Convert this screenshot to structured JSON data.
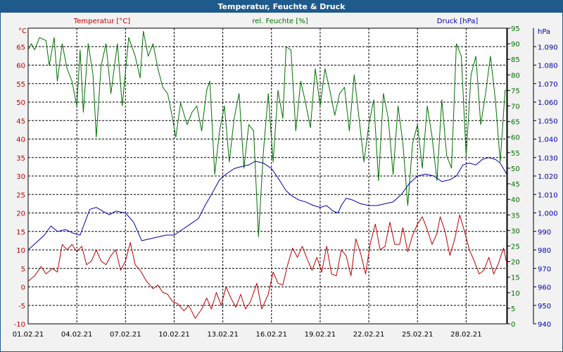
{
  "window": {
    "title": "Temperatur, Feuchte & Druck"
  },
  "chart_data": {
    "type": "line",
    "title": "Temperatur, Feuchte & Druck",
    "x_dates": [
      "01.02.21",
      "04.02.21",
      "07.02.21",
      "10.02.21",
      "13.02.21",
      "16.02.21",
      "19.02.21",
      "22.02.21",
      "25.02.21",
      "28.02.21"
    ],
    "x_range_days": [
      0,
      29.5
    ],
    "axes": {
      "left": {
        "unit": "°C",
        "label": "Temperatur [°C]",
        "range": [
          -10,
          70
        ],
        "ticks": [
          "-10",
          "-5",
          "0",
          "5",
          "10",
          "15",
          "20",
          "25",
          "30",
          "35",
          "40",
          "45",
          "50",
          "55",
          "60",
          "65"
        ],
        "color": "#c00000"
      },
      "mid": {
        "unit": "%",
        "label": "rel. Feuchte [%]",
        "range": [
          0,
          95
        ],
        "ticks": [
          "0",
          "5",
          "10",
          "15",
          "20",
          "25",
          "30",
          "35",
          "40",
          "45",
          "50",
          "55",
          "60",
          "65",
          "70",
          "75",
          "80",
          "85",
          "90",
          "95"
        ],
        "color": "#007000"
      },
      "right": {
        "unit": "hPa",
        "label": "Druck [hPa]",
        "range": [
          940,
          1100
        ],
        "ticks": [
          "940",
          "950",
          "960",
          "970",
          "980",
          "990",
          "1.000",
          "1.010",
          "1.020",
          "1.030",
          "1.040",
          "1.050",
          "1.060",
          "1.070",
          "1.080",
          "1.090"
        ],
        "color": "#0000b0"
      }
    },
    "series": [
      {
        "name": "Temperatur [°C]",
        "axis": "left",
        "color": "#c00000",
        "points": [
          [
            0,
            1.5
          ],
          [
            0.4,
            3
          ],
          [
            0.8,
            5.5
          ],
          [
            1.1,
            3.5
          ],
          [
            1.5,
            5
          ],
          [
            1.8,
            4
          ],
          [
            2.1,
            11.5
          ],
          [
            2.4,
            10
          ],
          [
            2.7,
            11.5
          ],
          [
            3,
            9.5
          ],
          [
            3.3,
            11
          ],
          [
            3.6,
            6
          ],
          [
            3.9,
            7
          ],
          [
            4.2,
            10
          ],
          [
            4.5,
            7
          ],
          [
            4.8,
            6
          ],
          [
            5.1,
            8.5
          ],
          [
            5.4,
            10
          ],
          [
            5.7,
            4.5
          ],
          [
            6,
            7
          ],
          [
            6.3,
            12
          ],
          [
            6.6,
            6
          ],
          [
            6.9,
            4.5
          ],
          [
            7.3,
            1.5
          ],
          [
            7.7,
            -0.5
          ],
          [
            8,
            0.5
          ],
          [
            8.3,
            -1.5
          ],
          [
            8.6,
            -2
          ],
          [
            8.9,
            -4
          ],
          [
            9.2,
            -4.5
          ],
          [
            9.6,
            -6.5
          ],
          [
            9.9,
            -5
          ],
          [
            10.3,
            -8.5
          ],
          [
            10.7,
            -6
          ],
          [
            11,
            -3
          ],
          [
            11.3,
            -6
          ],
          [
            11.6,
            -1.5
          ],
          [
            11.9,
            -5
          ],
          [
            12.2,
            0
          ],
          [
            12.5,
            -3
          ],
          [
            12.8,
            -5.5
          ],
          [
            13.1,
            -2
          ],
          [
            13.4,
            -6
          ],
          [
            13.7,
            -4
          ],
          [
            14.1,
            1
          ],
          [
            14.4,
            -6
          ],
          [
            14.8,
            -2
          ],
          [
            15.1,
            4
          ],
          [
            15.4,
            1
          ],
          [
            15.7,
            0.5
          ],
          [
            16,
            6
          ],
          [
            16.3,
            10.5
          ],
          [
            16.6,
            8
          ],
          [
            16.9,
            11
          ],
          [
            17.2,
            7.5
          ],
          [
            17.5,
            4.5
          ],
          [
            17.8,
            8
          ],
          [
            18.1,
            4
          ],
          [
            18.4,
            11
          ],
          [
            18.7,
            3.5
          ],
          [
            19,
            3
          ],
          [
            19.3,
            10
          ],
          [
            19.6,
            8.5
          ],
          [
            19.9,
            3
          ],
          [
            20.2,
            13
          ],
          [
            20.5,
            9
          ],
          [
            20.8,
            3.5
          ],
          [
            21.1,
            12
          ],
          [
            21.4,
            17
          ],
          [
            21.7,
            10
          ],
          [
            22,
            11
          ],
          [
            22.3,
            17.5
          ],
          [
            22.6,
            11.5
          ],
          [
            22.9,
            11.5
          ],
          [
            23.1,
            16
          ],
          [
            23.4,
            9.5
          ],
          [
            23.7,
            14
          ],
          [
            24,
            17
          ],
          [
            24.3,
            19
          ],
          [
            24.6,
            15.5
          ],
          [
            24.9,
            11.5
          ],
          [
            25.2,
            14.5
          ],
          [
            25.4,
            19
          ],
          [
            25.7,
            15
          ],
          [
            26,
            8.5
          ],
          [
            26.3,
            13
          ],
          [
            26.6,
            19.5
          ],
          [
            26.9,
            15
          ],
          [
            27.2,
            10
          ],
          [
            27.5,
            7
          ],
          [
            27.8,
            3.5
          ],
          [
            28.1,
            4.5
          ],
          [
            28.4,
            8
          ],
          [
            28.7,
            3.5
          ],
          [
            29,
            6.5
          ],
          [
            29.3,
            10.5
          ],
          [
            29.5,
            6.5
          ]
        ]
      },
      {
        "name": "rel. Feuchte [%]",
        "axis": "mid",
        "color": "#007000",
        "points": [
          [
            0,
            88
          ],
          [
            0.2,
            90
          ],
          [
            0.4,
            88
          ],
          [
            0.7,
            92
          ],
          [
            1.1,
            91
          ],
          [
            1.3,
            83
          ],
          [
            1.6,
            92
          ],
          [
            1.8,
            78
          ],
          [
            2.1,
            90
          ],
          [
            2.4,
            82
          ],
          [
            2.7,
            78
          ],
          [
            3,
            70
          ],
          [
            3.2,
            88
          ],
          [
            3.4,
            68
          ],
          [
            3.7,
            90
          ],
          [
            4,
            80
          ],
          [
            4.2,
            60
          ],
          [
            4.5,
            83
          ],
          [
            4.8,
            90
          ],
          [
            5.1,
            74
          ],
          [
            5.5,
            90
          ],
          [
            5.8,
            70
          ],
          [
            6.2,
            92
          ],
          [
            6.6,
            86
          ],
          [
            6.9,
            79
          ],
          [
            7.1,
            94
          ],
          [
            7.4,
            86
          ],
          [
            7.7,
            90
          ],
          [
            8,
            82
          ],
          [
            8.3,
            76
          ],
          [
            8.6,
            74
          ],
          [
            8.9,
            66
          ],
          [
            9.1,
            60
          ],
          [
            9.4,
            71
          ],
          [
            9.8,
            64
          ],
          [
            10.1,
            68
          ],
          [
            10.4,
            70
          ],
          [
            10.7,
            62
          ],
          [
            11,
            75
          ],
          [
            11.2,
            78
          ],
          [
            11.5,
            48
          ],
          [
            11.8,
            62
          ],
          [
            12.1,
            70
          ],
          [
            12.4,
            52
          ],
          [
            12.7,
            66
          ],
          [
            13,
            74
          ],
          [
            13.3,
            50
          ],
          [
            13.6,
            64
          ],
          [
            13.9,
            62
          ],
          [
            14.2,
            28
          ],
          [
            14.5,
            55
          ],
          [
            14.8,
            74
          ],
          [
            15.1,
            52
          ],
          [
            15.4,
            75
          ],
          [
            15.7,
            66
          ],
          [
            15.9,
            89
          ],
          [
            16.2,
            88
          ],
          [
            16.5,
            62
          ],
          [
            16.8,
            78
          ],
          [
            17.1,
            71
          ],
          [
            17.4,
            63
          ],
          [
            17.7,
            82
          ],
          [
            18,
            70
          ],
          [
            18.3,
            82
          ],
          [
            18.6,
            75
          ],
          [
            18.9,
            67
          ],
          [
            19.2,
            74
          ],
          [
            19.5,
            76
          ],
          [
            19.8,
            62
          ],
          [
            20.1,
            80
          ],
          [
            20.4,
            66
          ],
          [
            20.7,
            52
          ],
          [
            21,
            64
          ],
          [
            21.3,
            72
          ],
          [
            21.6,
            46
          ],
          [
            21.9,
            74
          ],
          [
            22.2,
            66
          ],
          [
            22.5,
            48
          ],
          [
            22.8,
            70
          ],
          [
            23.1,
            58
          ],
          [
            23.4,
            38
          ],
          [
            23.7,
            58
          ],
          [
            24,
            64
          ],
          [
            24.3,
            50
          ],
          [
            24.6,
            70
          ],
          [
            24.9,
            60
          ],
          [
            25.2,
            46
          ],
          [
            25.5,
            72
          ],
          [
            25.8,
            54
          ],
          [
            26.1,
            50
          ],
          [
            26.4,
            90
          ],
          [
            26.7,
            86
          ],
          [
            27,
            54
          ],
          [
            27.3,
            80
          ],
          [
            27.6,
            86
          ],
          [
            27.9,
            64
          ],
          [
            28.2,
            74
          ],
          [
            28.5,
            86
          ],
          [
            28.8,
            72
          ],
          [
            29.1,
            52
          ],
          [
            29.4,
            75
          ],
          [
            29.5,
            75
          ]
        ]
      },
      {
        "name": "Druck [hPa]",
        "axis": "right",
        "color": "#0000b0",
        "points": [
          [
            0,
            980
          ],
          [
            0.5,
            984
          ],
          [
            1,
            988
          ],
          [
            1.4,
            993
          ],
          [
            1.8,
            990
          ],
          [
            2.3,
            991
          ],
          [
            2.8,
            989
          ],
          [
            3.2,
            988
          ],
          [
            3.5,
            995
          ],
          [
            3.8,
            1002
          ],
          [
            4.2,
            1003
          ],
          [
            4.6,
            1001
          ],
          [
            5,
            999
          ],
          [
            5.4,
            1001
          ],
          [
            6,
            1000
          ],
          [
            6.5,
            995
          ],
          [
            7,
            985
          ],
          [
            7.5,
            986
          ],
          [
            8,
            987
          ],
          [
            8.5,
            988
          ],
          [
            9,
            988
          ],
          [
            9.5,
            991
          ],
          [
            10,
            994
          ],
          [
            10.5,
            997
          ],
          [
            10.9,
            1004
          ],
          [
            11.3,
            1010
          ],
          [
            11.8,
            1018
          ],
          [
            12.2,
            1021
          ],
          [
            12.7,
            1024
          ],
          [
            13.1,
            1025
          ],
          [
            13.6,
            1026
          ],
          [
            14,
            1028
          ],
          [
            14.5,
            1027
          ],
          [
            15,
            1024
          ],
          [
            15.4,
            1019
          ],
          [
            15.9,
            1012
          ],
          [
            16.3,
            1009
          ],
          [
            16.7,
            1007
          ],
          [
            17.1,
            1006
          ],
          [
            17.6,
            1004
          ],
          [
            18,
            1003
          ],
          [
            18.4,
            1004
          ],
          [
            18.8,
            1001
          ],
          [
            19.1,
            1000
          ],
          [
            19.3,
            1004
          ],
          [
            19.6,
            1008
          ],
          [
            20,
            1007
          ],
          [
            20.5,
            1005
          ],
          [
            21,
            1004
          ],
          [
            21.5,
            1004
          ],
          [
            22,
            1005
          ],
          [
            22.5,
            1006
          ],
          [
            23,
            1010
          ],
          [
            23.5,
            1016
          ],
          [
            24,
            1020
          ],
          [
            24.5,
            1021
          ],
          [
            25,
            1020
          ],
          [
            25.5,
            1017
          ],
          [
            26,
            1018
          ],
          [
            26.4,
            1020
          ],
          [
            26.8,
            1026
          ],
          [
            27.2,
            1027
          ],
          [
            27.6,
            1026
          ],
          [
            28,
            1029
          ],
          [
            28.4,
            1030
          ],
          [
            28.8,
            1029
          ],
          [
            29.1,
            1027
          ],
          [
            29.5,
            1021
          ]
        ]
      }
    ]
  }
}
